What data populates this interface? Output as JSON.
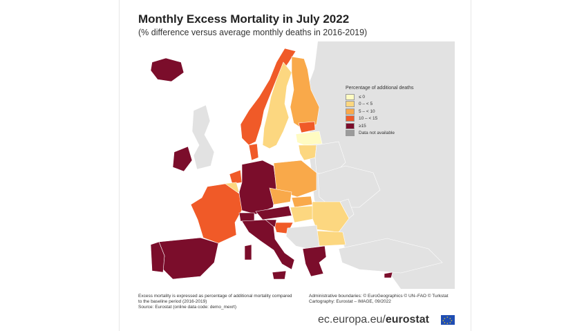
{
  "title": "Monthly Excess Mortality in July 2022",
  "subtitle": "(% difference versus average monthly deaths in 2016-2019)",
  "legend": {
    "title": "Percentage of additional deaths",
    "items": [
      {
        "label": "≤ 0",
        "color": "#fffbc2"
      },
      {
        "label": "0 – < 5",
        "color": "#fcd780"
      },
      {
        "label": "5 – < 10",
        "color": "#f9a94a"
      },
      {
        "label": "10 – < 15",
        "color": "#f05a28"
      },
      {
        "label": "≥15",
        "color": "#7b0d2b"
      },
      {
        "label": "Data not available",
        "color": "#9b9b9b"
      }
    ]
  },
  "footnote_left": [
    "Excess mortality is expressed as percentage of additional mortality compared",
    "to the baseline period (2016-2019)",
    "Source: Eurostat (online data code: demo_mexrt)"
  ],
  "footnote_right": [
    "Administrative boundaries: © EuroGeographics © UN–FAO © Turkstat",
    "Cartography: Eurostat – IMAGE, 09/2022"
  ],
  "brand": {
    "domain": "ec.europa.eu/",
    "name": "eurostat"
  },
  "colors": {
    "non_eu": "#e2e2e2",
    "sea": "#ffffff",
    "border": "#ffffff"
  }
}
